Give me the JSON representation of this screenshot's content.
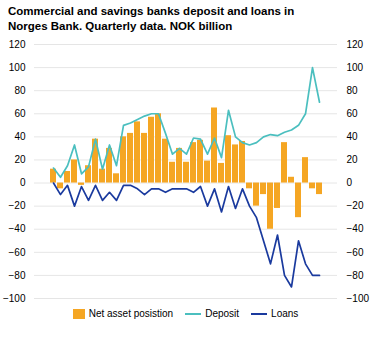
{
  "chart_data": {
    "type": "bar",
    "title": "Commercial and savings banks deposit and loans in",
    "subtitle": "Norges Bank. Quarterly data. NOK billion",
    "categories": [
      null,
      null,
      null,
      null,
      null,
      null,
      null,
      null,
      null,
      null,
      null,
      null,
      null,
      null,
      null,
      null,
      null,
      null,
      null,
      null,
      null,
      null,
      null,
      null,
      null,
      null,
      null,
      null,
      null,
      null,
      null,
      null,
      null,
      null,
      null,
      null,
      null,
      null,
      null
    ],
    "series": [
      {
        "name": "Net asset posistion",
        "type": "bar",
        "color": "#F5A623",
        "values": [
          12,
          -5,
          10,
          20,
          -2,
          15,
          38,
          12,
          30,
          8,
          40,
          43,
          53,
          43,
          57,
          60,
          38,
          18,
          30,
          18,
          35,
          37,
          19,
          65,
          17,
          41,
          33,
          36,
          -5,
          -20,
          -10,
          -40,
          -22,
          35,
          5,
          -30,
          22,
          -5,
          -10
        ]
      },
      {
        "name": "Deposit",
        "type": "line",
        "color": "#4BBFBF",
        "values": [
          13,
          5,
          15,
          33,
          8,
          14,
          38,
          12,
          33,
          15,
          50,
          52,
          55,
          58,
          60,
          60,
          43,
          25,
          30,
          25,
          39,
          38,
          25,
          39,
          22,
          63,
          40,
          35,
          33,
          35,
          40,
          42,
          41,
          44,
          46,
          50,
          60,
          100,
          70
        ]
      },
      {
        "name": "Loans",
        "type": "line",
        "color": "#1A3A9E",
        "values": [
          0,
          -10,
          -2,
          -20,
          -3,
          -15,
          -2,
          -15,
          -8,
          -15,
          -2,
          -2,
          -5,
          -10,
          -5,
          -5,
          -8,
          -5,
          -5,
          -5,
          -8,
          -3,
          -20,
          -5,
          -25,
          -3,
          -22,
          -5,
          -20,
          -30,
          -50,
          -70,
          -45,
          -80,
          -90,
          -50,
          -70,
          -80,
          -80
        ]
      }
    ],
    "ylim": [
      -100,
      120
    ],
    "yticks": [
      -100,
      -80,
      -60,
      -40,
      -20,
      0,
      20,
      40,
      60,
      80,
      100,
      120
    ],
    "y2lim": [
      -100,
      120
    ],
    "y2ticks": [
      -100,
      -80,
      -60,
      -40,
      -20,
      0,
      20,
      40,
      60,
      80,
      100,
      120
    ],
    "grid": true,
    "legend": "bottom",
    "tick_labels": "y"
  }
}
